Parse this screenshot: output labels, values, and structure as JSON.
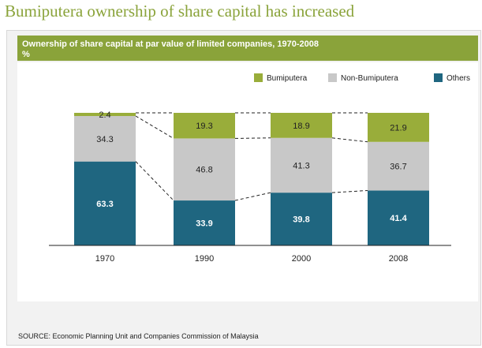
{
  "title": "Bumiputera ownership of share capital has increased",
  "chart_data": {
    "type": "bar",
    "stacked": true,
    "subtitle": "Ownership of share capital at par value of limited companies, 1970-2008",
    "unit": "%",
    "categories": [
      "1970",
      "1990",
      "2000",
      "2008"
    ],
    "series": [
      {
        "name": "Others",
        "color": "#1f6680",
        "values": [
          63.3,
          33.9,
          39.8,
          41.4
        ]
      },
      {
        "name": "Non-Bumiputera",
        "color": "#c8c8c8",
        "values": [
          34.3,
          46.8,
          41.3,
          36.7
        ]
      },
      {
        "name": "Bumiputera",
        "color": "#99ad3a",
        "values": [
          2.4,
          19.3,
          18.9,
          21.9
        ]
      }
    ],
    "legend": {
      "placement": "top-right",
      "order": [
        "Bumiputera",
        "Non-Bumiputera",
        "Others"
      ]
    },
    "ylim": [
      0,
      100
    ],
    "connector_lines": "dashed",
    "grid": false
  },
  "source": "SOURCE: Economic Planning Unit  and  Companies Commission of Malaysia"
}
